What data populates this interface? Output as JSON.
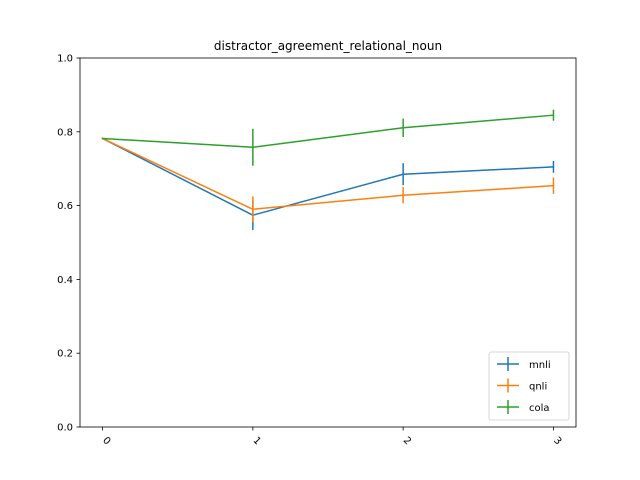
{
  "chart_data": {
    "type": "line",
    "title": "distractor_agreement_relational_noun",
    "xlabel": "",
    "ylabel": "",
    "x": [
      0,
      1,
      2,
      3
    ],
    "xtick_labels": [
      "0",
      "1",
      "2",
      "3"
    ],
    "ylim": [
      0.0,
      1.0
    ],
    "ytick_labels": [
      "0.0",
      "0.2",
      "0.4",
      "0.6",
      "0.8",
      "1.0"
    ],
    "yticks": [
      0.0,
      0.2,
      0.4,
      0.6,
      0.8,
      1.0
    ],
    "grid": false,
    "legend_position": "lower-right",
    "series": [
      {
        "name": "mnli",
        "color": "#1f77b4",
        "values": [
          0.782,
          0.574,
          0.685,
          0.705
        ],
        "errors": [
          0.0,
          0.04,
          0.03,
          0.016
        ]
      },
      {
        "name": "qnli",
        "color": "#ff7f0e",
        "values": [
          0.782,
          0.59,
          0.628,
          0.654
        ],
        "errors": [
          0.0,
          0.035,
          0.022,
          0.022
        ]
      },
      {
        "name": "cola",
        "color": "#2ca02c",
        "values": [
          0.782,
          0.758,
          0.811,
          0.845
        ],
        "errors": [
          0.0,
          0.05,
          0.025,
          0.015
        ]
      }
    ]
  }
}
